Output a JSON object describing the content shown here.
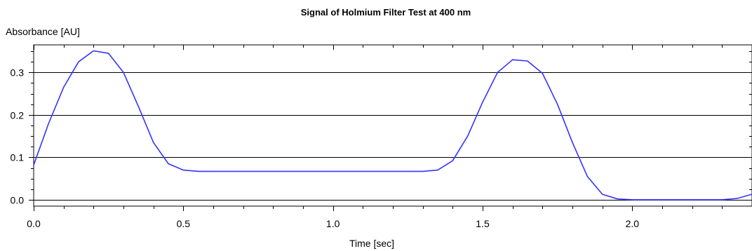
{
  "chart_data": {
    "type": "line",
    "title": "Signal of Holmium Filter Test at 400 nm",
    "xlabel": "Time [sec]",
    "ylabel": "Absorbance [AU]",
    "xlim": [
      0.0,
      2.4
    ],
    "ylim": [
      -0.015,
      0.365
    ],
    "xticks": [
      0.0,
      0.5,
      1.0,
      1.5,
      2.0
    ],
    "xtick_labels": [
      "0.0",
      "0.5",
      "1.0",
      "1.5",
      "2.0"
    ],
    "yticks": [
      0.0,
      0.1,
      0.2,
      0.3
    ],
    "ytick_labels": [
      "0.0",
      "0.1",
      "0.2",
      "0.3"
    ],
    "grid": "horizontal",
    "series": [
      {
        "color": "#3333ff",
        "x": [
          0.0,
          0.05,
          0.1,
          0.15,
          0.2,
          0.25,
          0.3,
          0.35,
          0.4,
          0.45,
          0.5,
          0.55,
          0.6,
          0.7,
          0.8,
          0.9,
          1.0,
          1.1,
          1.2,
          1.3,
          1.35,
          1.4,
          1.45,
          1.5,
          1.55,
          1.6,
          1.65,
          1.7,
          1.75,
          1.8,
          1.85,
          1.9,
          1.95,
          2.0,
          2.1,
          2.2,
          2.3,
          2.35,
          2.4
        ],
        "y": [
          0.082,
          0.18,
          0.265,
          0.325,
          0.351,
          0.345,
          0.3,
          0.22,
          0.135,
          0.085,
          0.07,
          0.067,
          0.067,
          0.067,
          0.067,
          0.067,
          0.067,
          0.067,
          0.067,
          0.067,
          0.07,
          0.092,
          0.15,
          0.23,
          0.3,
          0.33,
          0.327,
          0.298,
          0.225,
          0.135,
          0.055,
          0.013,
          0.002,
          0.0,
          0.0,
          0.0,
          0.0,
          0.003,
          0.013
        ]
      }
    ]
  }
}
